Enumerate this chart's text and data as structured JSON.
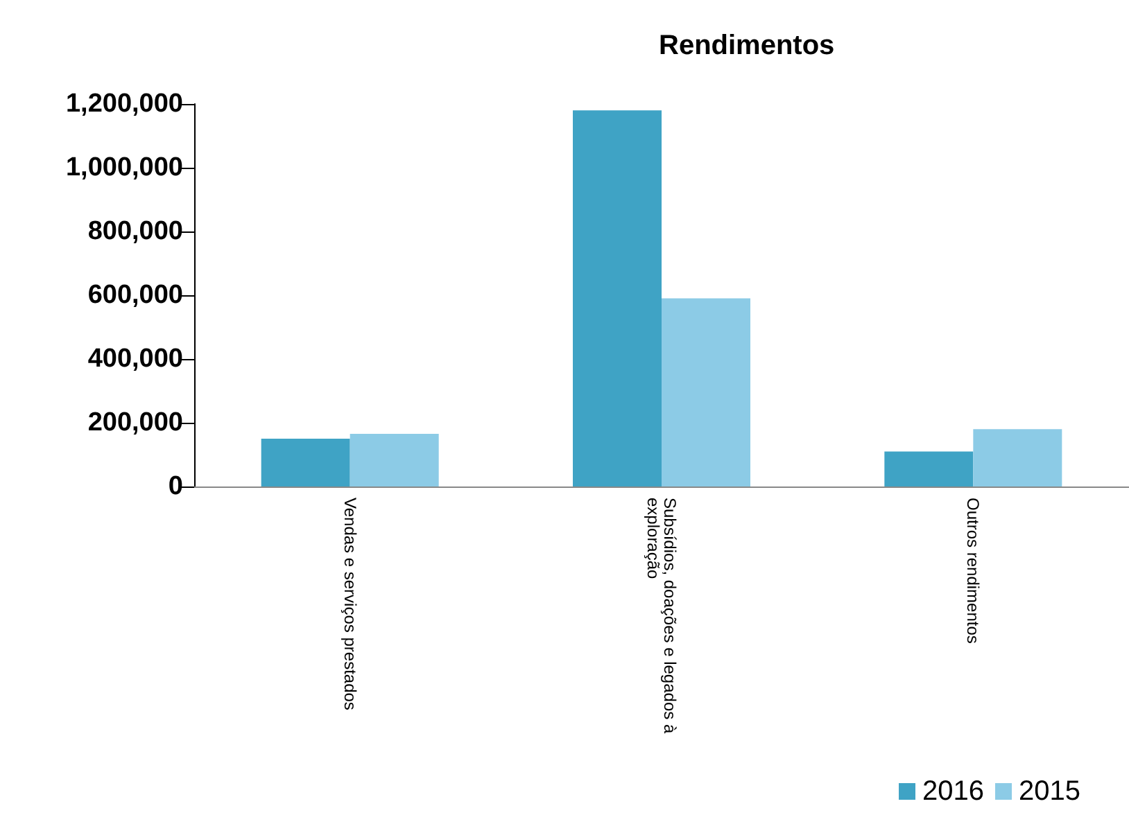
{
  "chart_data": {
    "type": "bar",
    "title": "Rendimentos",
    "categories": [
      "Vendas e serviços prestados",
      "Subsídios, doações e legados à exploração",
      "Outros rendimentos"
    ],
    "series": [
      {
        "name": "2016",
        "color": "#3fa3c5",
        "values": [
          150000,
          1180000,
          110000
        ]
      },
      {
        "name": "2015",
        "color": "#8ccbe6",
        "values": [
          165000,
          590000,
          180000
        ]
      }
    ],
    "ylim": [
      0,
      1200000
    ],
    "yticks": [
      0,
      {
        "value": 200000,
        "label": "200,000"
      },
      {
        "value": 400000,
        "label": "400,000"
      },
      {
        "value": 600000,
        "label": "600,000"
      },
      {
        "value": 800000,
        "label": "800,000"
      },
      {
        "value": 1000000,
        "label": "1,000,000"
      },
      {
        "value": 1200000,
        "label": "1,200,000"
      }
    ],
    "grid": false,
    "legend": "bottom right"
  }
}
